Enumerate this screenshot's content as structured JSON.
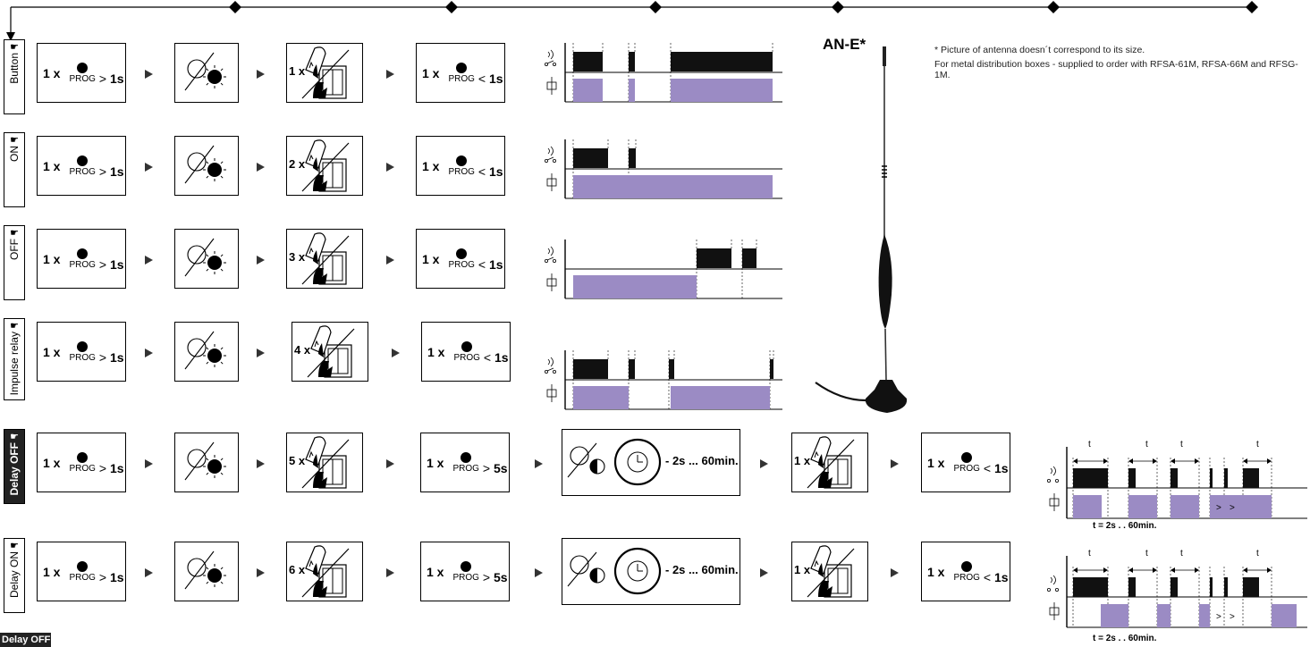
{
  "rows": [
    {
      "mode": "Button",
      "dark": false,
      "tap_count": "1 x",
      "extra": false
    },
    {
      "mode": "ON",
      "dark": false,
      "tap_count": "2 x",
      "extra": false
    },
    {
      "mode": "OFF",
      "dark": false,
      "tap_count": "3 x",
      "extra": false
    },
    {
      "mode": "Impulse relay",
      "dark": false,
      "tap_count": "4 x",
      "extra": false
    },
    {
      "mode": "Delay OFF",
      "dark": true,
      "tap_count": "5 x",
      "extra": true
    },
    {
      "mode": "Delay ON",
      "dark": false,
      "tap_count": "6 x",
      "extra": true
    }
  ],
  "prog": {
    "count": "1 x",
    "label": "PROG",
    "gt": ">",
    "lt": "<",
    "long": "1s",
    "end": "1s",
    "extra_long": "5s"
  },
  "delay": {
    "range": "- 2s ... 60min.",
    "tap": "1 x",
    "t_range": "t = 2s . . 60min.",
    "t": "t"
  },
  "antenna": {
    "title": "AN-E*"
  },
  "footnote": {
    "line1": "* Picture of antenna doesn´t correspond to its size.",
    "line2": "For metal distribution boxes - supplied to order with RFSA-61M, RFSA-66M and RFSG-1M."
  },
  "corner_label": "Delay OFF ♦",
  "colors": {
    "relay": "#9b8bc4",
    "signal": "#000000",
    "line": "#000000"
  },
  "icons": {
    "hand": "pointing-hand-icon",
    "bulb": "bulb-icon",
    "remote": "remote-control-icon",
    "clock": "clock-icon"
  }
}
